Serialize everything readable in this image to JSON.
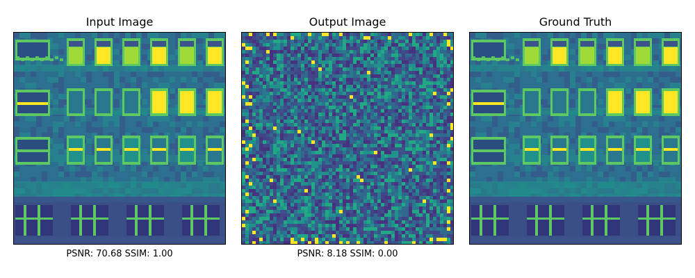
{
  "panels": [
    {
      "title": "Input Image",
      "caption": "PSNR: 70.68 SSIM: 1.00"
    },
    {
      "title": "Output Image",
      "caption": "PSNR: 8.18 SSIM: 0.00"
    },
    {
      "title": "Ground Truth",
      "caption": ""
    }
  ],
  "colors": {
    "viridis_dark": "#440154",
    "viridis_navy": "#3b528b",
    "viridis_teal": "#21918c",
    "viridis_green": "#5ec962",
    "viridis_yellow": "#fde725"
  }
}
